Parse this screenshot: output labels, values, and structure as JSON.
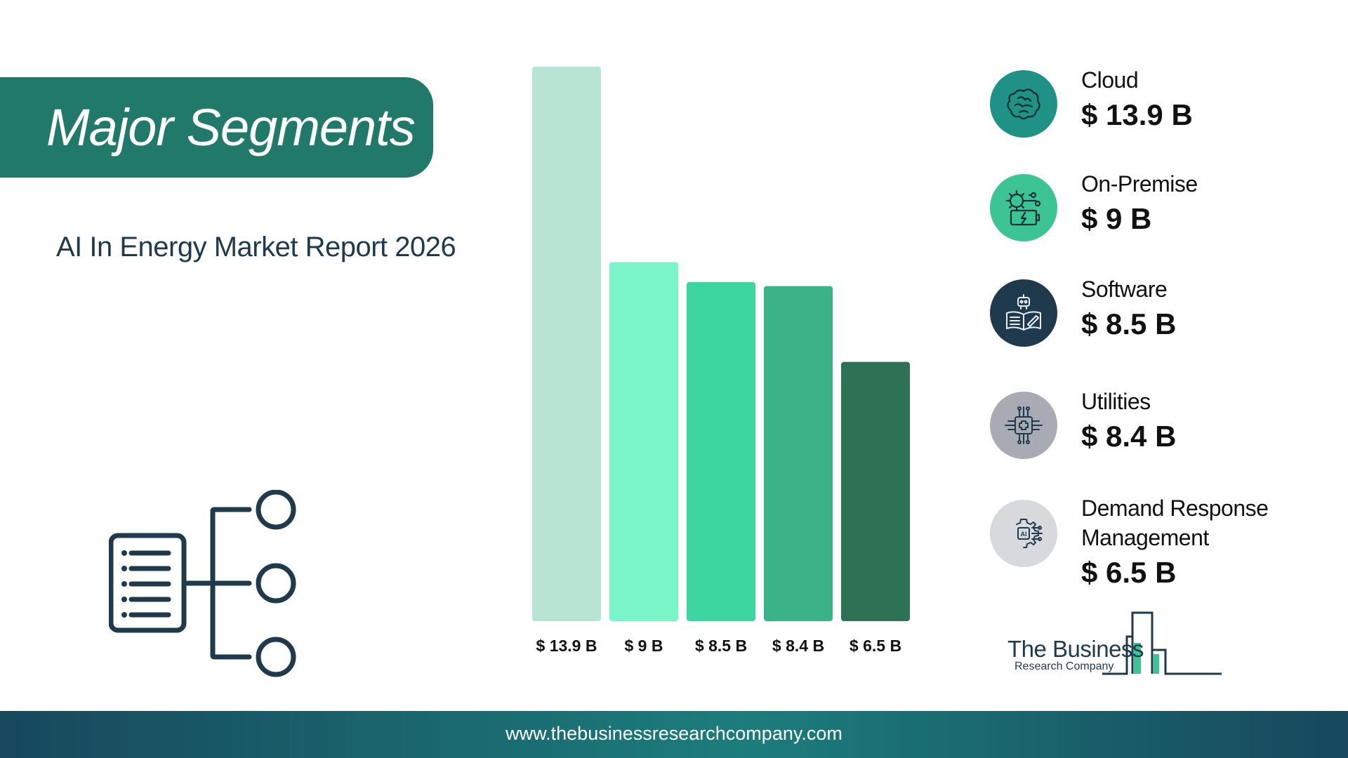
{
  "banner": {
    "title": "Major Segments"
  },
  "subtitle": "AI In Energy Market Report 2026",
  "chart_data": {
    "type": "bar",
    "categories": [
      "Cloud",
      "On-Premise",
      "Software",
      "Utilities",
      "Demand Response Management"
    ],
    "values": [
      13.9,
      9,
      8.5,
      8.4,
      6.5
    ],
    "value_labels": [
      "$ 13.9 B",
      "$ 9 B",
      "$ 8.5 B",
      "$ 8.4 B",
      "$ 6.5 B"
    ],
    "colors": [
      "#b8e4d4",
      "#7af5c8",
      "#3dd69e",
      "#3bb386",
      "#2e7256"
    ],
    "ylim": [
      0,
      13.9
    ],
    "grid": false,
    "legend_placement": "right"
  },
  "legend": {
    "items": [
      {
        "name": "Cloud",
        "value": "$ 13.9 B",
        "icon": "brain-icon",
        "circle_color": "#1f9285"
      },
      {
        "name": "On-Premise",
        "value": "$ 9 B",
        "icon": "gear-battery-icon",
        "circle_color": "#3cc495"
      },
      {
        "name": "Software",
        "value": "$ 8.5 B",
        "icon": "robot-book-icon",
        "circle_color": "#1f3a4d"
      },
      {
        "name": "Utilities",
        "value": "$ 8.4 B",
        "icon": "circuit-chip-icon",
        "circle_color": "#a8abb3"
      },
      {
        "name": "Demand Response Management",
        "value": "$ 6.5 B",
        "icon": "ai-gear-icon",
        "circle_color": "#d8d9dc"
      }
    ]
  },
  "logo": {
    "line1": "The Business",
    "line2": "Research Company"
  },
  "footer": {
    "url": "www.thebusinessresearchcompany.com"
  }
}
